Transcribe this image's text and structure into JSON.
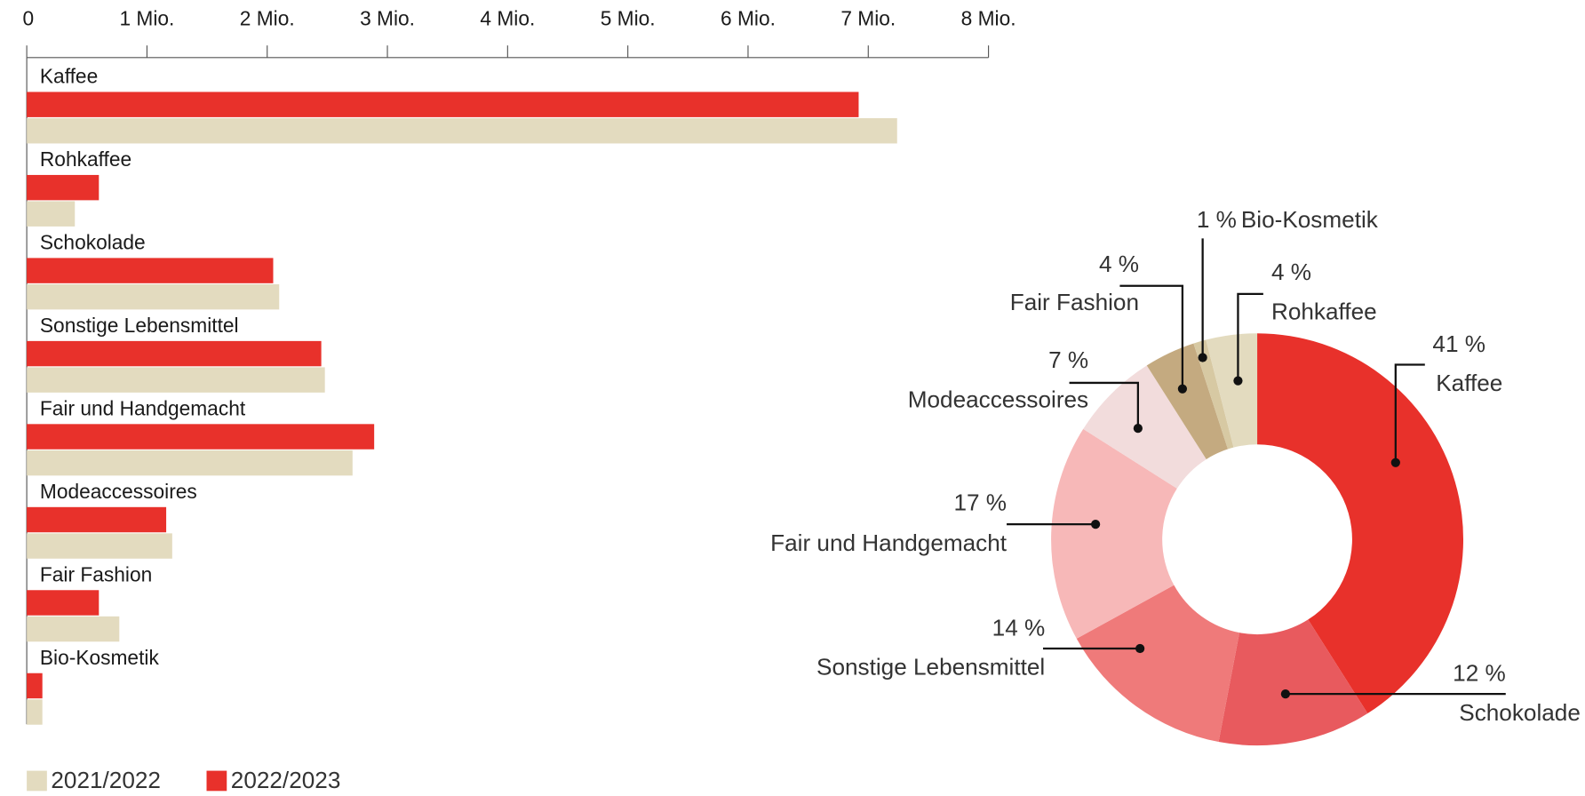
{
  "chart_data": [
    {
      "type": "hbar",
      "categories": [
        "Kaffee",
        "Rohkaffee",
        "Schokolade",
        "Sonstige Lebensmittel",
        "Fair und Handgemacht",
        "Modeaccessoires",
        "Fair Fashion",
        "Bio-Kosmetik"
      ],
      "series": [
        {
          "name": "2022/2023",
          "color": "#e8312b",
          "values": [
            6.92,
            0.6,
            2.05,
            2.45,
            2.89,
            1.16,
            0.6,
            0.13
          ]
        },
        {
          "name": "2021/2022",
          "color": "#e3dbbf",
          "values": [
            7.24,
            0.4,
            2.1,
            2.48,
            2.71,
            1.21,
            0.77,
            0.13
          ]
        }
      ],
      "legend_order": [
        "2021/2022",
        "2022/2023"
      ],
      "xlim": [
        0,
        8
      ],
      "xticks": [
        0,
        {
          "value": 1,
          "label": "1 Mio."
        },
        {
          "value": 2,
          "label": "2 Mio."
        },
        {
          "value": 3,
          "label": "3 Mio."
        },
        {
          "value": 4,
          "label": "4 Mio."
        },
        {
          "value": 5,
          "label": "5 Mio."
        },
        {
          "value": 6,
          "label": "6 Mio."
        },
        {
          "value": 7,
          "label": "7 Mio."
        },
        {
          "value": 8,
          "label": "8 Mio."
        }
      ]
    },
    {
      "type": "donut",
      "categories": [
        "Kaffee",
        "Schokolade",
        "Sonstige Lebensmittel",
        "Fair und Handgemacht",
        "Modeaccessoires",
        "Fair Fashion",
        "Bio-Kosmetik",
        "Rohkaffee"
      ],
      "values": [
        41,
        12,
        14,
        17,
        7,
        4,
        1,
        4
      ],
      "value_labels": [
        "41 %",
        "12 %",
        "14 %",
        "17 %",
        "7 %",
        "4 %",
        "1 %",
        "4 %"
      ],
      "colors": [
        "#e8312b",
        "#e85a5e",
        "#ef7a7a",
        "#f7b8b8",
        "#f2dcdc",
        "#c4aa80",
        "#d7c9a3",
        "#e3dbbf"
      ]
    }
  ]
}
